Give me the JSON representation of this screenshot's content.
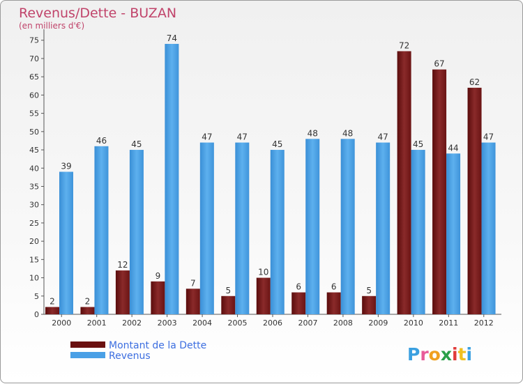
{
  "chart_data": {
    "type": "bar",
    "title": "Revenus/Dette - BUZAN",
    "subtitle": "(en milliers d'€)",
    "categories": [
      "2000",
      "2001",
      "2002",
      "2003",
      "2004",
      "2005",
      "2006",
      "2007",
      "2008",
      "2009",
      "2010",
      "2011",
      "2012"
    ],
    "series": [
      {
        "name": "Montant de la Dette",
        "values": [
          2,
          2,
          12,
          9,
          7,
          5,
          10,
          6,
          6,
          5,
          72,
          67,
          62
        ],
        "color": "#7b1a1a"
      },
      {
        "name": "Revenus",
        "values": [
          39,
          46,
          45,
          74,
          47,
          47,
          45,
          48,
          48,
          47,
          45,
          44,
          47
        ],
        "color": "#4aa0e6"
      }
    ],
    "yticks": [
      0,
      5,
      10,
      15,
      20,
      25,
      30,
      35,
      40,
      45,
      50,
      55,
      60,
      65,
      70,
      75
    ],
    "ylim": [
      0,
      78
    ],
    "grid": false,
    "legend": "bottom-left",
    "title_color": "#c0436a"
  },
  "logo": {
    "text": "Proxiti"
  }
}
